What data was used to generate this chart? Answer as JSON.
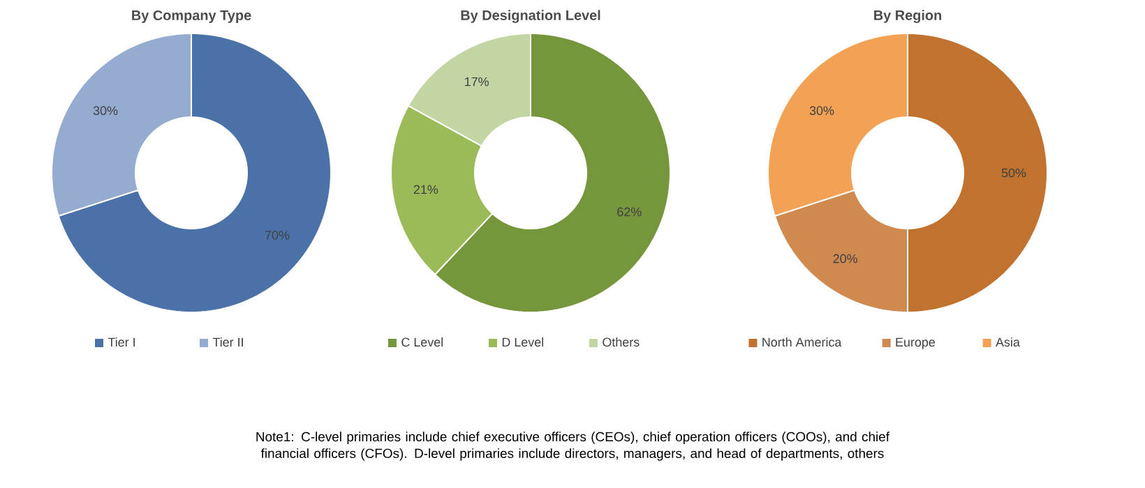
{
  "chart_data": [
    {
      "type": "donut",
      "title": "By Company Type",
      "categories": [
        "Tier I",
        "Tier II"
      ],
      "values": [
        70,
        30
      ],
      "colors": [
        "#4a72a8",
        "#95acd0"
      ],
      "value_labels": [
        "70%",
        "30%"
      ],
      "legend": "bottom",
      "annotations": [
        "Note1: C-level primaries include chief executive officers (CEOs), chief operation officers (COOs), and chief financial officers (CFOs). D-level primaries include directors, managers, and head of departments, others"
      ]
    },
    {
      "type": "donut",
      "title": "By Designation Level",
      "categories": [
        "C Level",
        "D Level",
        "Others"
      ],
      "values": [
        62,
        21,
        17
      ],
      "colors": [
        "#76963c",
        "#9bbb59",
        "#c3d5a3"
      ],
      "value_labels": [
        "62%",
        "21%",
        "17%"
      ],
      "legend": "bottom"
    },
    {
      "type": "donut",
      "title": "By Region",
      "categories": [
        "North America",
        "Europe",
        "Asia"
      ],
      "values": [
        50,
        20,
        30
      ],
      "colors": [
        "#c0722e",
        "#d08a50",
        "#f3a154"
      ],
      "value_labels": [
        "50%",
        "20%",
        "30%"
      ],
      "legend": "bottom"
    }
  ]
}
